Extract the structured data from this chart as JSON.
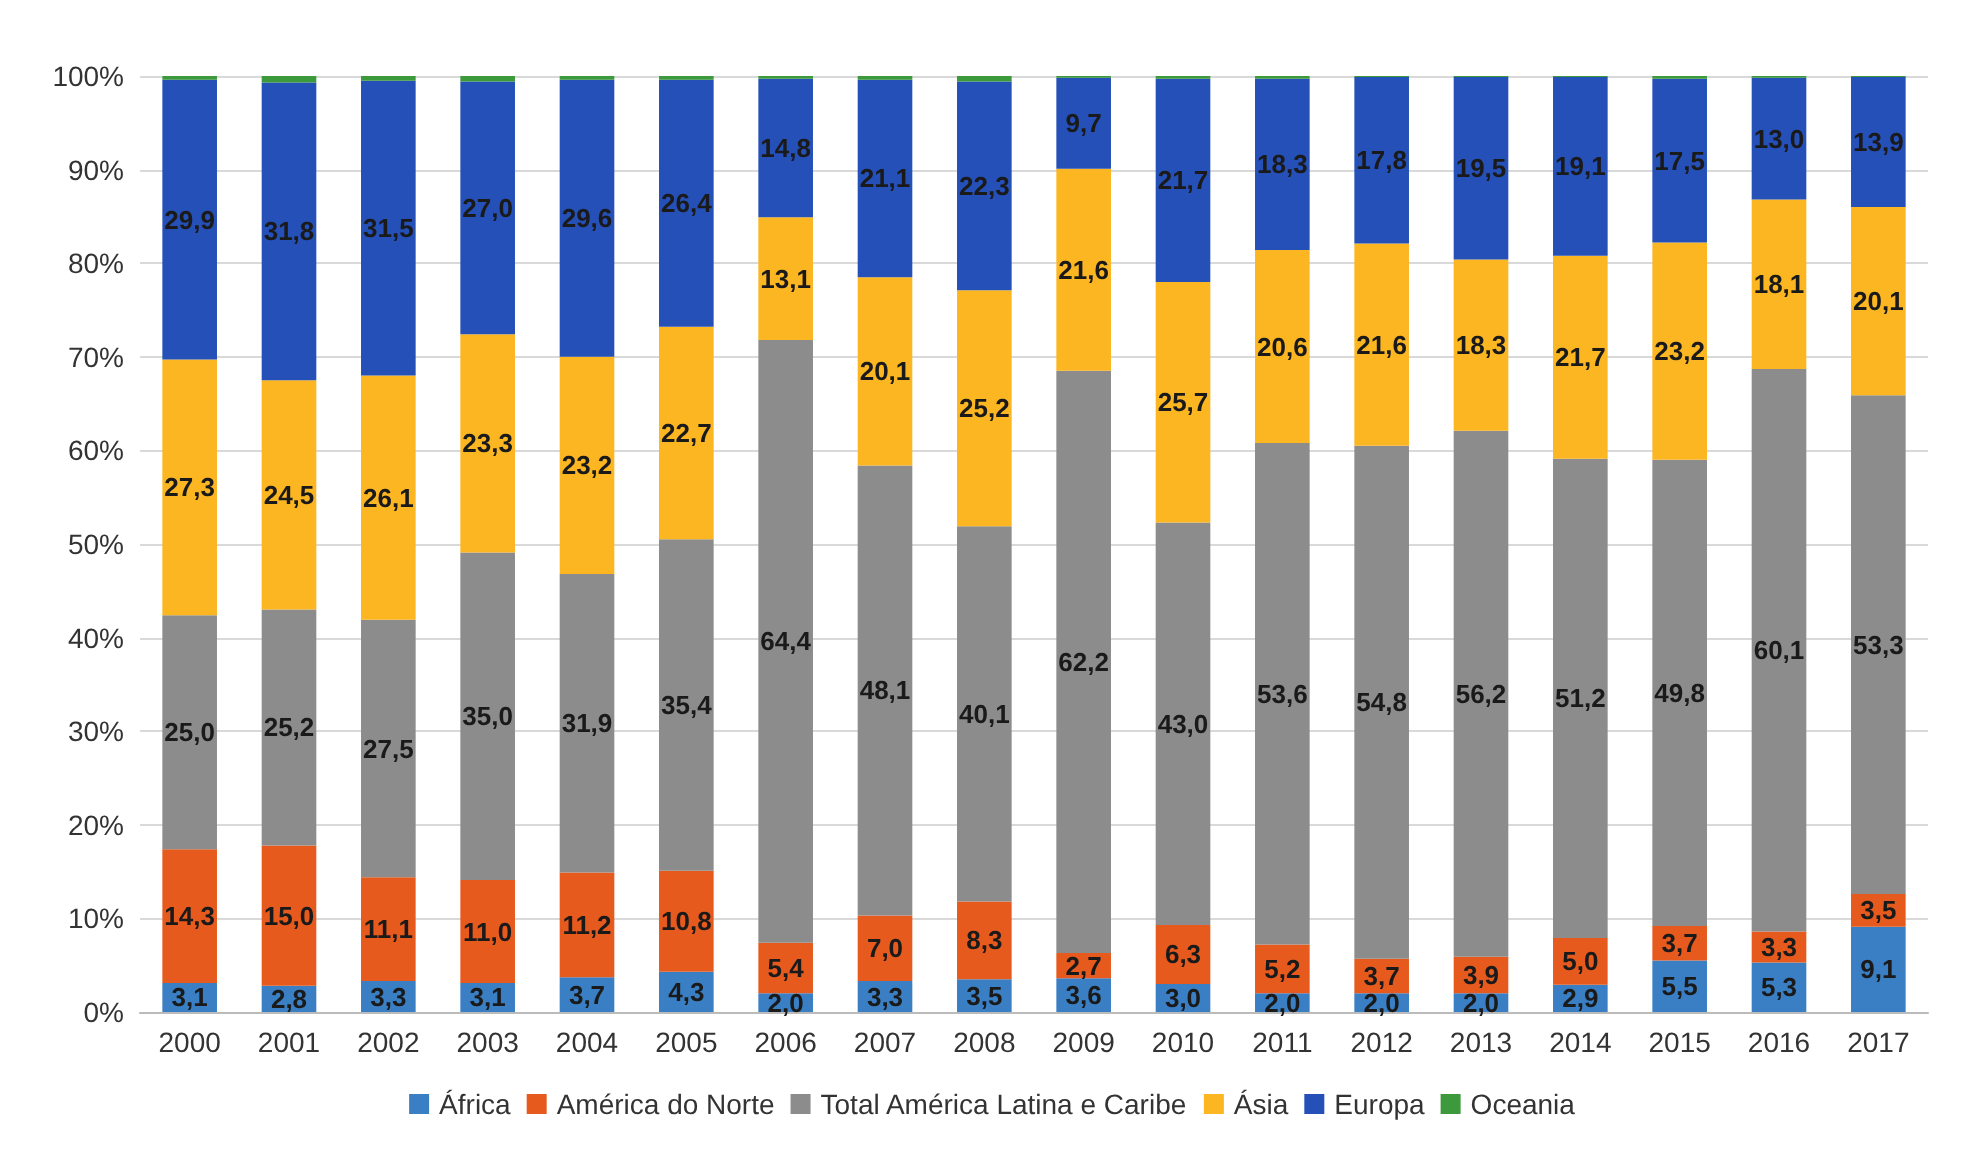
{
  "chart_data": {
    "type": "bar",
    "stacked": true,
    "categories": [
      "2000",
      "2001",
      "2002",
      "2003",
      "2004",
      "2005",
      "2006",
      "2007",
      "2008",
      "2009",
      "2010",
      "2011",
      "2012",
      "2013",
      "2014",
      "2015",
      "2016",
      "2017"
    ],
    "series": [
      {
        "name": "África",
        "color": "#3a7fc4",
        "values": [
          3.1,
          2.8,
          3.3,
          3.1,
          3.7,
          4.3,
          2.0,
          3.3,
          3.5,
          3.6,
          3.0,
          2.0,
          2.0,
          2.0,
          2.9,
          5.5,
          5.3,
          9.1
        ],
        "value_labels": [
          "3,1",
          "2,8",
          "3,3",
          "3,1",
          "3,7",
          "4,3",
          "2,0",
          "3,3",
          "3,5",
          "3,6",
          "3,0",
          "2,0",
          "2,0",
          "2,0",
          "2,9",
          "5,5",
          "5,3",
          "9,1"
        ]
      },
      {
        "name": "América do Norte",
        "color": "#e65a1e",
        "values": [
          14.3,
          15.0,
          11.1,
          11.0,
          11.2,
          10.8,
          5.4,
          7.0,
          8.3,
          2.7,
          6.3,
          5.2,
          3.7,
          3.9,
          5.0,
          3.7,
          3.3,
          3.5
        ],
        "value_labels": [
          "14,3",
          "15,0",
          "11,1",
          "11,0",
          "11,2",
          "10,8",
          "5,4",
          "7,0",
          "8,3",
          "2,7",
          "6,3",
          "5,2",
          "3,7",
          "3,9",
          "5,0",
          "3,7",
          "3,3",
          "3,5"
        ]
      },
      {
        "name": "Total América Latina e Caribe",
        "color": "#8c8c8c",
        "values": [
          25.0,
          25.2,
          27.5,
          35.0,
          31.9,
          35.4,
          64.4,
          48.1,
          40.1,
          62.2,
          43.0,
          53.6,
          54.8,
          56.2,
          51.2,
          49.8,
          60.1,
          53.3
        ],
        "value_labels": [
          "25,0",
          "25,2",
          "27,5",
          "35,0",
          "31,9",
          "35,4",
          "64,4",
          "48,1",
          "40,1",
          "62,2",
          "43,0",
          "53,6",
          "54,8",
          "56,2",
          "51,2",
          "49,8",
          "60,1",
          "53,3"
        ]
      },
      {
        "name": "Ásia",
        "color": "#fbb622",
        "values": [
          27.3,
          24.5,
          26.1,
          23.3,
          23.2,
          22.7,
          13.1,
          20.1,
          25.2,
          21.6,
          25.7,
          20.6,
          21.6,
          18.3,
          21.7,
          23.2,
          18.1,
          20.1
        ],
        "value_labels": [
          "27,3",
          "24,5",
          "26,1",
          "23,3",
          "23,2",
          "22,7",
          "13,1",
          "20,1",
          "25,2",
          "21,6",
          "25,7",
          "20,6",
          "21,6",
          "18,3",
          "21,7",
          "23,2",
          "18,1",
          "20,1"
        ]
      },
      {
        "name": "Europa",
        "color": "#2550b8",
        "values": [
          29.9,
          31.8,
          31.5,
          27.0,
          29.6,
          26.4,
          14.8,
          21.1,
          22.3,
          9.7,
          21.7,
          18.3,
          17.8,
          19.5,
          19.1,
          17.5,
          13.0,
          13.9
        ],
        "value_labels": [
          "29,9",
          "31,8",
          "31,5",
          "27,0",
          "29,6",
          "26,4",
          "14,8",
          "21,1",
          "22,3",
          "9,7",
          "21,7",
          "18,3",
          "17,8",
          "19,5",
          "19,1",
          "17,5",
          "13,0",
          "13,9"
        ]
      },
      {
        "name": "Oceania",
        "color": "#3c9a3c",
        "values": [
          0.4,
          0.7,
          0.5,
          0.6,
          0.4,
          0.4,
          0.3,
          0.4,
          0.6,
          0.2,
          0.3,
          0.3,
          0.1,
          0.1,
          0.1,
          0.3,
          0.2,
          0.1
        ]
      }
    ],
    "ylim": [
      0,
      100
    ],
    "yticks": [
      {
        "value": 0,
        "label": "0%"
      },
      {
        "value": 10,
        "label": "10%"
      },
      {
        "value": 20,
        "label": "20%"
      },
      {
        "value": 30,
        "label": "30%"
      },
      {
        "value": 40,
        "label": "40%"
      },
      {
        "value": 50,
        "label": "50%"
      },
      {
        "value": 60,
        "label": "60%"
      },
      {
        "value": 70,
        "label": "70%"
      },
      {
        "value": 80,
        "label": "80%"
      },
      {
        "value": 90,
        "label": "90%"
      },
      {
        "value": 100,
        "label": "100%"
      }
    ],
    "grid": "y",
    "legend": "bottom"
  }
}
